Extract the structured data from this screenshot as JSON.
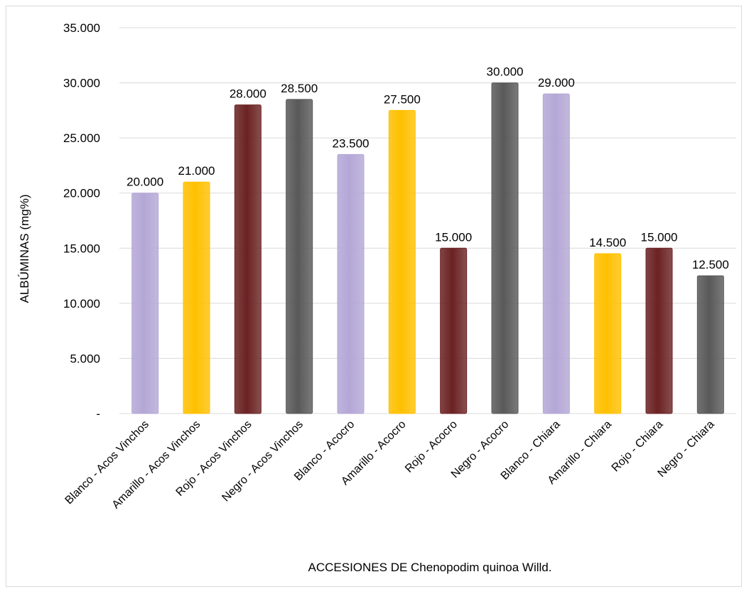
{
  "chart_data": {
    "type": "bar",
    "xlabel": "ACCESIONES DE Chenopodim quinoa Willd.",
    "ylabel": "ALBÚMINAS (mg%)",
    "ylim": [
      0,
      35000
    ],
    "yticks": [
      0,
      5000,
      10000,
      15000,
      20000,
      25000,
      30000,
      35000
    ],
    "ytick_labels": [
      "-",
      "5.000",
      "10.000",
      "15.000",
      "20.000",
      "25.000",
      "30.000",
      "35.000"
    ],
    "grid": true,
    "legend": "none",
    "categories": [
      "Blanco - Acos Vinchos",
      "Amarillo - Acos Vinchos",
      "Rojo - Acos Vinchos",
      "Negro - Acos Vinchos",
      "Blanco - Acocro",
      "Amarillo - Acocro",
      "Rojo - Acocro",
      "Negro - Acocro",
      "Blanco - Chiara",
      "Amarillo - Chiara",
      "Rojo - Chiara",
      "Negro - Chiara"
    ],
    "values": [
      20000,
      21000,
      28000,
      28500,
      23500,
      27500,
      15000,
      30000,
      29000,
      14500,
      15000,
      12500
    ],
    "data_labels": [
      "20.000",
      "21.000",
      "28.000",
      "28.500",
      "23.500",
      "27.500",
      "15.000",
      "30.000",
      "29.000",
      "14.500",
      "15.000",
      "12.500"
    ],
    "bar_colors": [
      "#b4a7d6",
      "#ffc000",
      "#6b2222",
      "#595959",
      "#b4a7d6",
      "#ffc000",
      "#6b2222",
      "#595959",
      "#b4a7d6",
      "#ffc000",
      "#6b2222",
      "#595959"
    ]
  }
}
